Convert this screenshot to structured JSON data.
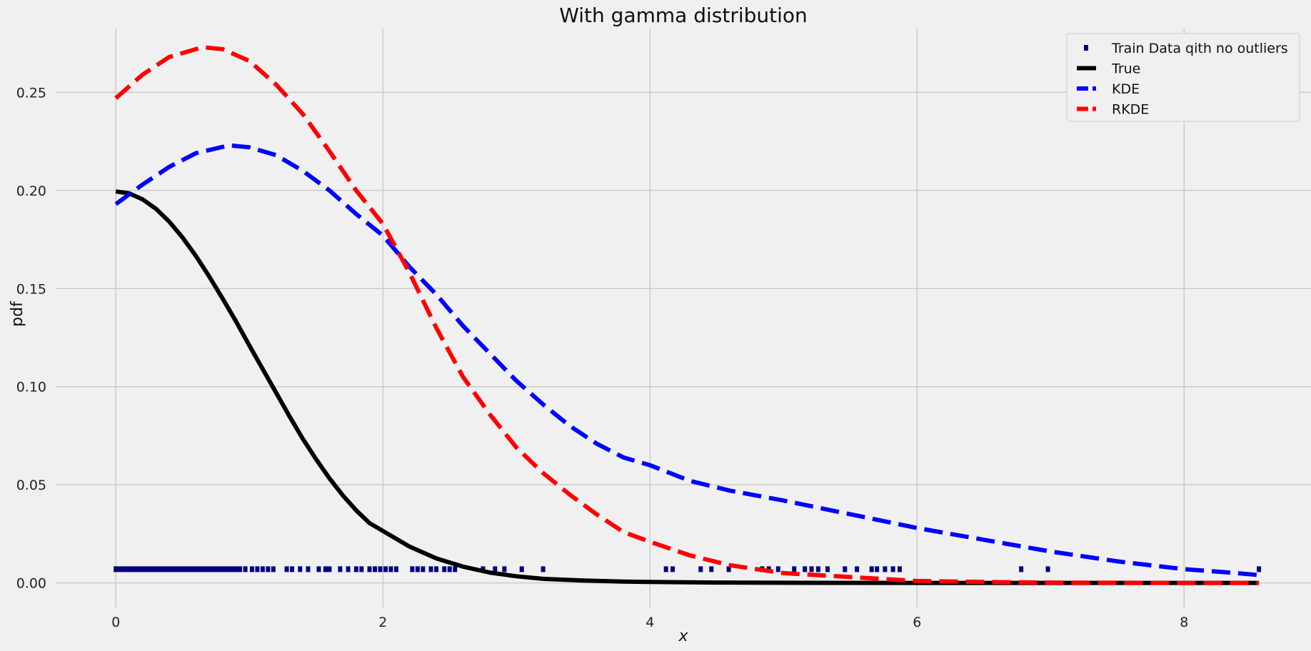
{
  "chart_data": {
    "type": "line",
    "title": "With gamma distribution",
    "xlabel": "x",
    "ylabel": "pdf",
    "xlim": [
      -0.45,
      8.95
    ],
    "ylim": [
      -0.0125,
      0.2825
    ],
    "xticks": [
      0,
      2,
      4,
      6,
      8
    ],
    "yticks": [
      0.0,
      0.05,
      0.1,
      0.15,
      0.2,
      0.25
    ],
    "xtick_labels": [
      "0",
      "2",
      "4",
      "6",
      "8"
    ],
    "ytick_labels": [
      "0.00",
      "0.05",
      "0.10",
      "0.15",
      "0.20",
      "0.25"
    ],
    "grid": true,
    "legend": {
      "placement": "top-right"
    },
    "series": [
      {
        "name": "Train Data qith no outliers",
        "style": "markers",
        "color": "#000080",
        "y_constant": 0.007,
        "x": [
          0.0,
          0.03,
          0.06,
          0.09,
          0.12,
          0.15,
          0.18,
          0.21,
          0.24,
          0.27,
          0.3,
          0.33,
          0.36,
          0.39,
          0.42,
          0.45,
          0.48,
          0.51,
          0.54,
          0.57,
          0.6,
          0.63,
          0.66,
          0.69,
          0.72,
          0.75,
          0.78,
          0.81,
          0.84,
          0.87,
          0.9,
          0.93,
          0.97,
          1.02,
          1.06,
          1.1,
          1.14,
          1.18,
          1.28,
          1.32,
          1.38,
          1.44,
          1.52,
          1.57,
          1.6,
          1.68,
          1.74,
          1.8,
          1.84,
          1.9,
          1.94,
          1.98,
          2.02,
          2.06,
          2.1,
          2.22,
          2.26,
          2.3,
          2.36,
          2.4,
          2.46,
          2.5,
          2.54,
          2.75,
          2.84,
          2.91,
          3.04,
          3.2,
          4.12,
          4.17,
          4.38,
          4.46,
          4.59,
          4.84,
          4.89,
          4.96,
          5.08,
          5.16,
          5.21,
          5.26,
          5.33,
          5.46,
          5.55,
          5.66,
          5.7,
          5.76,
          5.82,
          5.87,
          6.78,
          6.98,
          8.56
        ]
      },
      {
        "name": "True",
        "style": "solid",
        "color": "#000000",
        "x": [
          0.0,
          0.1,
          0.2,
          0.3,
          0.4,
          0.5,
          0.6,
          0.7,
          0.8,
          0.9,
          1.0,
          1.1,
          1.2,
          1.3,
          1.4,
          1.5,
          1.6,
          1.7,
          1.8,
          1.9,
          2.0,
          2.2,
          2.4,
          2.6,
          2.8,
          3.0,
          3.2,
          3.5,
          3.8,
          4.0,
          4.5,
          5.0,
          6.0,
          7.0,
          8.0,
          8.56
        ],
        "values": [
          0.1995,
          0.1985,
          0.1955,
          0.1907,
          0.1841,
          0.176,
          0.1666,
          0.1561,
          0.1449,
          0.1333,
          0.121,
          0.109,
          0.097,
          0.085,
          0.0735,
          0.063,
          0.0533,
          0.0446,
          0.037,
          0.0305,
          0.0265,
          0.0185,
          0.0125,
          0.0083,
          0.0053,
          0.0034,
          0.0021,
          0.0012,
          0.0007,
          0.0005,
          0.0002,
          0.0001,
          0.0,
          0.0,
          0.0,
          0.0
        ]
      },
      {
        "name": "KDE",
        "style": "dashed",
        "color": "#0000ff",
        "x": [
          0.0,
          0.2,
          0.4,
          0.6,
          0.85,
          1.0,
          1.2,
          1.4,
          1.6,
          1.8,
          2.0,
          2.2,
          2.4,
          2.6,
          2.8,
          3.0,
          3.2,
          3.4,
          3.6,
          3.8,
          4.0,
          4.3,
          4.6,
          5.0,
          5.5,
          6.0,
          6.5,
          7.0,
          7.5,
          8.0,
          8.3,
          8.56
        ],
        "values": [
          0.193,
          0.203,
          0.212,
          0.219,
          0.223,
          0.222,
          0.218,
          0.21,
          0.2,
          0.188,
          0.177,
          0.161,
          0.147,
          0.131,
          0.117,
          0.103,
          0.091,
          0.08,
          0.071,
          0.064,
          0.06,
          0.052,
          0.047,
          0.042,
          0.035,
          0.028,
          0.022,
          0.016,
          0.011,
          0.007,
          0.0055,
          0.004
        ]
      },
      {
        "name": "RKDE",
        "style": "dashed",
        "color": "#ff0000",
        "x": [
          0.0,
          0.2,
          0.4,
          0.65,
          0.8,
          1.0,
          1.2,
          1.4,
          1.6,
          1.8,
          2.0,
          2.2,
          2.4,
          2.6,
          2.8,
          3.0,
          3.2,
          3.4,
          3.6,
          3.8,
          4.0,
          4.3,
          4.6,
          5.0,
          5.5,
          6.0,
          6.5,
          7.0,
          7.5,
          8.0,
          8.56
        ],
        "values": [
          0.247,
          0.259,
          0.268,
          0.273,
          0.272,
          0.266,
          0.254,
          0.239,
          0.22,
          0.2,
          0.183,
          0.158,
          0.13,
          0.105,
          0.086,
          0.069,
          0.056,
          0.045,
          0.035,
          0.026,
          0.021,
          0.014,
          0.009,
          0.005,
          0.003,
          0.001,
          0.0005,
          0.0002,
          0.0001,
          0.0,
          0.0
        ]
      }
    ]
  }
}
